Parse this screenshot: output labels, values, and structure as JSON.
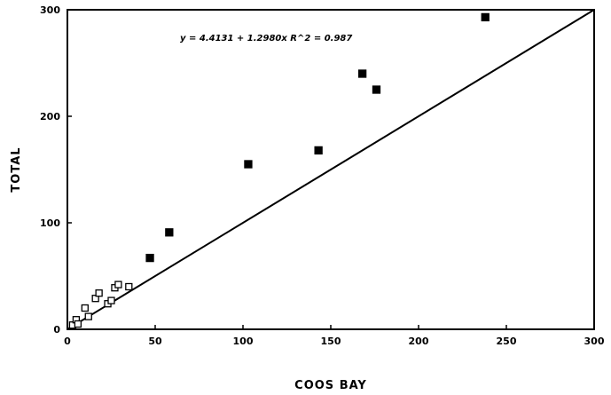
{
  "chart_data": {
    "type": "scatter",
    "xlabel": "COOS BAY",
    "ylabel": "TOTAL",
    "xlim": [
      0,
      300
    ],
    "ylim": [
      0,
      300
    ],
    "x_ticks": [
      "0",
      "50",
      "100",
      "150",
      "200",
      "250",
      "300"
    ],
    "y_ticks": [
      "0",
      "100",
      "200",
      "300"
    ],
    "grid": false,
    "legend": "none",
    "annotation": "y = 4.4131 + 1.2980x   R^2 = 0.987",
    "series": [
      {
        "marker": "filled-square",
        "x": [
          47,
          58,
          103,
          143,
          168,
          176,
          238
        ],
        "y": [
          67,
          91,
          155,
          168,
          240,
          225,
          293
        ]
      },
      {
        "marker": "open-square",
        "x": [
          3,
          5,
          6,
          10,
          12,
          16,
          18,
          23,
          25,
          27,
          29,
          35
        ],
        "y": [
          4,
          9,
          5,
          20,
          12,
          29,
          34,
          24,
          27,
          39,
          42,
          40
        ]
      }
    ],
    "reference_line": {
      "type": "identity",
      "x": [
        0,
        300
      ],
      "y": [
        0,
        300
      ]
    }
  }
}
